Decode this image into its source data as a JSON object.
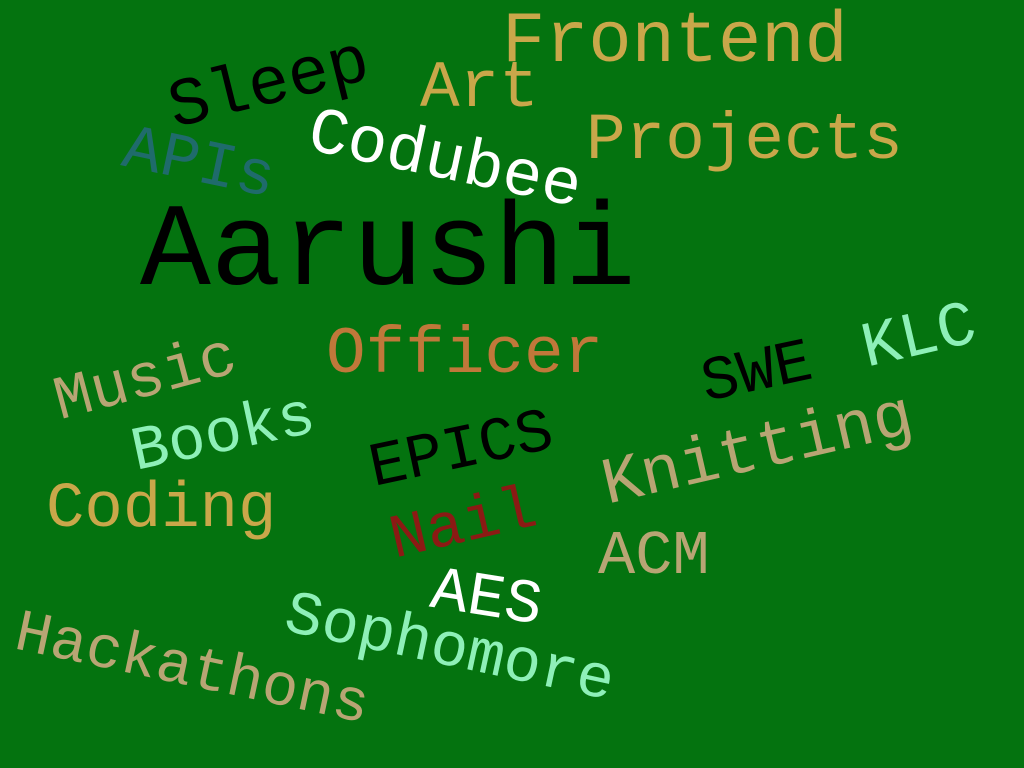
{
  "words": [
    {
      "text": "Aarushi",
      "color": "#000000"
    },
    {
      "text": "Frontend",
      "color": "#c9a74a"
    },
    {
      "text": "Sleep",
      "color": "#000000"
    },
    {
      "text": "Art",
      "color": "#c9a74a"
    },
    {
      "text": "Projects",
      "color": "#c9a74a"
    },
    {
      "text": "APIs",
      "color": "#1f6b6b"
    },
    {
      "text": "Codubee",
      "color": "#ffffff"
    },
    {
      "text": "Music",
      "color": "#b8a574"
    },
    {
      "text": "Officer",
      "color": "#c0783a"
    },
    {
      "text": "SWE",
      "color": "#000000"
    },
    {
      "text": "KLC",
      "color": "#8ef0b8"
    },
    {
      "text": "Books",
      "color": "#8ef0b8"
    },
    {
      "text": "EPICS",
      "color": "#000000"
    },
    {
      "text": "Knitting",
      "color": "#b8a574"
    },
    {
      "text": "Coding",
      "color": "#c9a74a"
    },
    {
      "text": "Nail",
      "color": "#8b1a14"
    },
    {
      "text": "ACM",
      "color": "#b8a574"
    },
    {
      "text": "AES",
      "color": "#ffffff"
    },
    {
      "text": "Sophomore",
      "color": "#8ef0b8"
    },
    {
      "text": "Hackathons",
      "color": "#b8a574"
    }
  ]
}
